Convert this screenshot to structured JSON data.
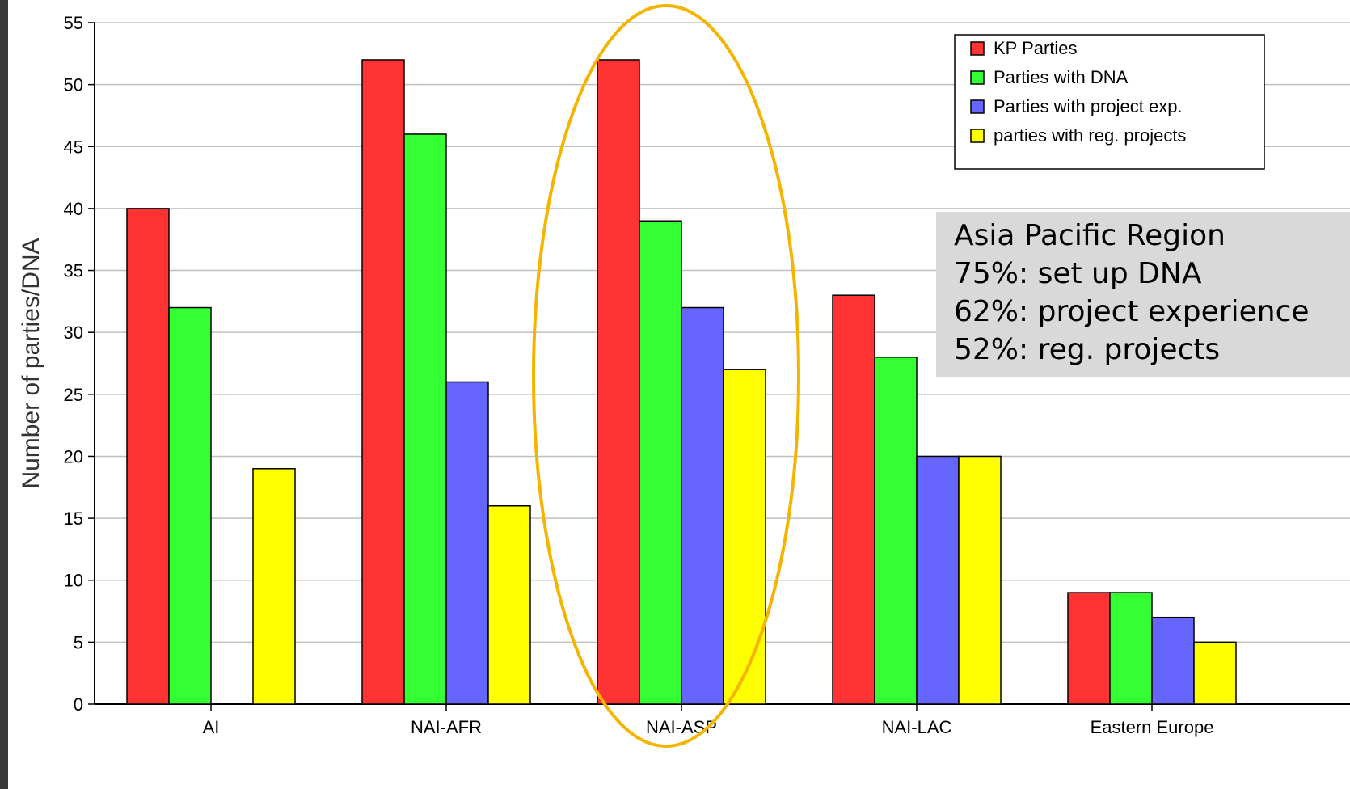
{
  "chart_data": {
    "type": "bar",
    "title": "",
    "xlabel": "",
    "ylabel": "Number of parties/DNA",
    "ylim": [
      0,
      55
    ],
    "yticks": [
      0,
      5,
      10,
      15,
      20,
      25,
      30,
      35,
      40,
      45,
      50,
      55
    ],
    "grid": true,
    "legend_position": "top-right",
    "categories": [
      "AI",
      "NAI-AFR",
      "NAI-ASP",
      "NAI-LAC",
      "Eastern Europe"
    ],
    "series": [
      {
        "name": "KP Parties",
        "color": "#ff3333",
        "values": [
          40,
          52,
          52,
          33,
          9
        ]
      },
      {
        "name": "Parties with DNA",
        "color": "#33ff33",
        "values": [
          32,
          46,
          39,
          28,
          9
        ]
      },
      {
        "name": "Parties with project exp.",
        "color": "#6666ff",
        "values": [
          0,
          26,
          32,
          20,
          7
        ]
      },
      {
        "name": "parties with reg. projects",
        "color": "#ffff00",
        "values": [
          19,
          16,
          27,
          20,
          5
        ]
      }
    ],
    "highlight": {
      "category": "NAI-ASP",
      "color": "#f5b400",
      "shape": "ellipse"
    },
    "annotation": {
      "lines": [
        "Asia Pacific Region",
        "75%: set up DNA",
        "62%: project experience",
        "52%: reg. projects"
      ]
    }
  }
}
